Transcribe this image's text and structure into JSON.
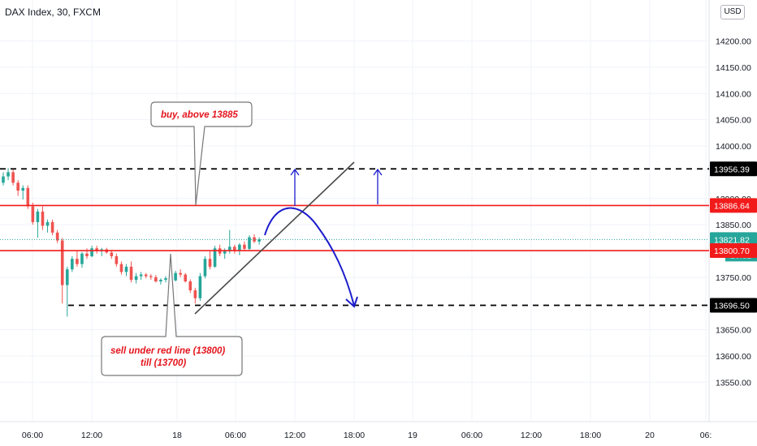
{
  "header": {
    "title": "DAX Index, 30, FXCM",
    "currency": "USD"
  },
  "chart_data": {
    "type": "candlestick",
    "y_ticks": [
      "14200.00",
      "14150.00",
      "14100.00",
      "14050.00",
      "14000.00",
      "13900.00",
      "13850.00",
      "13750.00",
      "13650.00",
      "13600.00",
      "13550.00"
    ],
    "x_ticks": [
      "06:00",
      "12:00",
      "18",
      "06:00",
      "12:00",
      "18:00",
      "19",
      "06:00",
      "12:00",
      "18:00",
      "20",
      "06:"
    ],
    "ylim": [
      13500,
      14230
    ],
    "levels": [
      {
        "name": "resistance",
        "value": 13956.39,
        "label": "13956.39",
        "style": "dashed",
        "color": "#000000"
      },
      {
        "name": "buy-line",
        "value": 13886.64,
        "label": "13886.64",
        "style": "solid",
        "color": "#f21b1b"
      },
      {
        "name": "last-price",
        "value": 13821.82,
        "label": "13821.82",
        "style": "dotted",
        "color": "#26a69a"
      },
      {
        "name": "sell-line",
        "value": 13800.7,
        "label": "13800.70",
        "style": "solid",
        "color": "#f21b1b"
      },
      {
        "name": "support",
        "value": 13696.5,
        "label": "13696.50",
        "style": "dashed",
        "color": "#000000"
      }
    ],
    "countdown": "10:32",
    "annotations": {
      "buy": "buy, above 13885",
      "sell_line1": "sell under red line (13800)",
      "sell_line2": "till (13700)"
    },
    "candles": [
      [
        13930,
        13950,
        13925,
        13942
      ],
      [
        13942,
        13958,
        13935,
        13950
      ],
      [
        13950,
        13955,
        13925,
        13930
      ],
      [
        13930,
        13935,
        13905,
        13915
      ],
      [
        13915,
        13925,
        13898,
        13920
      ],
      [
        13920,
        13925,
        13880,
        13885
      ],
      [
        13885,
        13892,
        13850,
        13855
      ],
      [
        13855,
        13880,
        13825,
        13875
      ],
      [
        13875,
        13885,
        13840,
        13848
      ],
      [
        13848,
        13860,
        13835,
        13855
      ],
      [
        13855,
        13860,
        13830,
        13835
      ],
      [
        13835,
        13840,
        13815,
        13820
      ],
      [
        13820,
        13825,
        13700,
        13735
      ],
      [
        13735,
        13770,
        13675,
        13765
      ],
      [
        13765,
        13790,
        13760,
        13785
      ],
      [
        13785,
        13800,
        13770,
        13775
      ],
      [
        13775,
        13798,
        13768,
        13795
      ],
      [
        13795,
        13805,
        13785,
        13790
      ],
      [
        13790,
        13810,
        13788,
        13805
      ],
      [
        13805,
        13810,
        13795,
        13800
      ],
      [
        13800,
        13806,
        13790,
        13803
      ],
      [
        13803,
        13806,
        13795,
        13797
      ],
      [
        13797,
        13802,
        13785,
        13790
      ],
      [
        13790,
        13795,
        13770,
        13775
      ],
      [
        13775,
        13780,
        13755,
        13760
      ],
      [
        13760,
        13775,
        13752,
        13770
      ],
      [
        13770,
        13780,
        13740,
        13745
      ],
      [
        13745,
        13758,
        13738,
        13752
      ],
      [
        13752,
        13760,
        13745,
        13755
      ],
      [
        13755,
        13758,
        13748,
        13752
      ],
      [
        13752,
        13756,
        13745,
        13750
      ],
      [
        13750,
        13754,
        13740,
        13742
      ],
      [
        13742,
        13748,
        13736,
        13745
      ],
      [
        13745,
        13752,
        13740,
        13748
      ],
      [
        13748,
        13755,
        13742,
        13744
      ],
      [
        13744,
        13762,
        13742,
        13758
      ],
      [
        13758,
        13765,
        13750,
        13755
      ],
      [
        13755,
        13758,
        13740,
        13742
      ],
      [
        13742,
        13746,
        13720,
        13725
      ],
      [
        13725,
        13730,
        13700,
        13710
      ],
      [
        13710,
        13758,
        13705,
        13752
      ],
      [
        13752,
        13790,
        13748,
        13785
      ],
      [
        13785,
        13800,
        13765,
        13770
      ],
      [
        13770,
        13810,
        13768,
        13805
      ],
      [
        13805,
        13812,
        13790,
        13795
      ],
      [
        13795,
        13805,
        13785,
        13800
      ],
      [
        13800,
        13840,
        13795,
        13808
      ],
      [
        13808,
        13812,
        13795,
        13800
      ],
      [
        13800,
        13815,
        13792,
        13812
      ],
      [
        13812,
        13818,
        13800,
        13804
      ],
      [
        13804,
        13830,
        13800,
        13826
      ],
      [
        13826,
        13832,
        13815,
        13818
      ],
      [
        13818,
        13826,
        13812,
        13822
      ]
    ]
  }
}
